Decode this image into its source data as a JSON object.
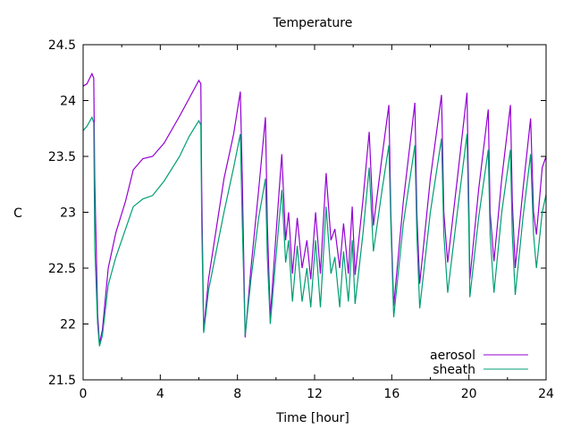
{
  "chart_data": {
    "type": "line",
    "title": "Temperature",
    "xlabel": "Time [hour]",
    "ylabel": "C",
    "xlim": [
      0,
      24
    ],
    "ylim": [
      21.5,
      24.5
    ],
    "xticks": [
      0,
      4,
      8,
      12,
      16,
      20,
      24
    ],
    "xtick_labels": [
      "0",
      "4",
      "8",
      "12",
      "16",
      "20",
      "24"
    ],
    "yticks": [
      21.5,
      22,
      22.5,
      23,
      23.5,
      24,
      24.5
    ],
    "ytick_labels": [
      "21.5",
      "22",
      "22.5",
      "23",
      "23.5",
      "24",
      "24.5"
    ],
    "grid": false,
    "legend_position": "bottom-right",
    "series": [
      {
        "name": "aerosol",
        "color": "#9400d3",
        "points": [
          [
            0,
            24.13
          ],
          [
            0.2,
            24.15
          ],
          [
            0.46,
            24.24
          ],
          [
            0.55,
            24.2
          ],
          [
            0.6,
            23.3
          ],
          [
            0.75,
            22.1
          ],
          [
            0.85,
            21.82
          ],
          [
            1.0,
            21.95
          ],
          [
            1.3,
            22.5
          ],
          [
            1.7,
            22.82
          ],
          [
            2.2,
            23.1
          ],
          [
            2.6,
            23.38
          ],
          [
            3.1,
            23.48
          ],
          [
            3.6,
            23.5
          ],
          [
            4.2,
            23.62
          ],
          [
            5.0,
            23.86
          ],
          [
            5.5,
            24.02
          ],
          [
            6.0,
            24.18
          ],
          [
            6.1,
            24.15
          ],
          [
            6.15,
            23.2
          ],
          [
            6.25,
            21.94
          ],
          [
            6.5,
            22.4
          ],
          [
            7.3,
            23.3
          ],
          [
            7.8,
            23.7
          ],
          [
            8.15,
            24.08
          ],
          [
            8.25,
            23.3
          ],
          [
            8.4,
            21.88
          ],
          [
            8.7,
            22.5
          ],
          [
            9.1,
            23.2
          ],
          [
            9.45,
            23.85
          ],
          [
            9.55,
            22.9
          ],
          [
            9.7,
            22.06
          ],
          [
            10.0,
            22.8
          ],
          [
            10.3,
            23.52
          ],
          [
            10.5,
            22.75
          ],
          [
            10.65,
            23.0
          ],
          [
            10.85,
            22.45
          ],
          [
            11.1,
            22.95
          ],
          [
            11.35,
            22.5
          ],
          [
            11.6,
            22.75
          ],
          [
            11.8,
            22.4
          ],
          [
            12.05,
            23.0
          ],
          [
            12.3,
            22.45
          ],
          [
            12.6,
            23.35
          ],
          [
            12.85,
            22.75
          ],
          [
            13.05,
            22.85
          ],
          [
            13.3,
            22.5
          ],
          [
            13.5,
            22.9
          ],
          [
            13.75,
            22.45
          ],
          [
            13.95,
            23.05
          ],
          [
            14.1,
            22.44
          ],
          [
            14.5,
            23.1
          ],
          [
            14.83,
            23.72
          ],
          [
            15.05,
            22.88
          ],
          [
            15.5,
            23.5
          ],
          [
            15.85,
            23.96
          ],
          [
            15.95,
            23.0
          ],
          [
            16.1,
            22.16
          ],
          [
            16.6,
            23.1
          ],
          [
            17.2,
            23.98
          ],
          [
            17.3,
            23.0
          ],
          [
            17.45,
            22.36
          ],
          [
            18.0,
            23.3
          ],
          [
            18.58,
            24.05
          ],
          [
            18.7,
            23.0
          ],
          [
            18.9,
            22.55
          ],
          [
            19.4,
            23.3
          ],
          [
            19.9,
            24.07
          ],
          [
            20.0,
            23.0
          ],
          [
            20.05,
            22.4
          ],
          [
            20.5,
            23.2
          ],
          [
            21.0,
            23.92
          ],
          [
            21.1,
            23.0
          ],
          [
            21.3,
            22.56
          ],
          [
            21.7,
            23.3
          ],
          [
            22.15,
            23.96
          ],
          [
            22.25,
            23.1
          ],
          [
            22.4,
            22.5
          ],
          [
            22.8,
            23.2
          ],
          [
            23.2,
            23.84
          ],
          [
            23.35,
            23.0
          ],
          [
            23.5,
            22.8
          ],
          [
            23.8,
            23.4
          ],
          [
            24,
            23.5
          ]
        ]
      },
      {
        "name": "sheath",
        "color": "#009e73",
        "points": [
          [
            0,
            23.73
          ],
          [
            0.2,
            23.77
          ],
          [
            0.46,
            23.85
          ],
          [
            0.55,
            23.8
          ],
          [
            0.6,
            22.7
          ],
          [
            0.75,
            22.0
          ],
          [
            0.85,
            21.8
          ],
          [
            1.0,
            21.9
          ],
          [
            1.3,
            22.35
          ],
          [
            1.7,
            22.6
          ],
          [
            2.2,
            22.85
          ],
          [
            2.6,
            23.05
          ],
          [
            3.1,
            23.12
          ],
          [
            3.6,
            23.15
          ],
          [
            4.2,
            23.28
          ],
          [
            5.0,
            23.5
          ],
          [
            5.5,
            23.68
          ],
          [
            6.0,
            23.82
          ],
          [
            6.1,
            23.78
          ],
          [
            6.15,
            22.9
          ],
          [
            6.25,
            21.92
          ],
          [
            6.5,
            22.3
          ],
          [
            7.3,
            23.0
          ],
          [
            7.8,
            23.4
          ],
          [
            8.15,
            23.7
          ],
          [
            8.25,
            22.9
          ],
          [
            8.4,
            21.9
          ],
          [
            8.7,
            22.4
          ],
          [
            9.1,
            22.95
          ],
          [
            9.45,
            23.3
          ],
          [
            9.55,
            22.6
          ],
          [
            9.7,
            22.0
          ],
          [
            10.0,
            22.6
          ],
          [
            10.3,
            23.2
          ],
          [
            10.5,
            22.55
          ],
          [
            10.65,
            22.75
          ],
          [
            10.85,
            22.2
          ],
          [
            11.1,
            22.7
          ],
          [
            11.35,
            22.2
          ],
          [
            11.6,
            22.5
          ],
          [
            11.8,
            22.15
          ],
          [
            12.05,
            22.75
          ],
          [
            12.3,
            22.15
          ],
          [
            12.6,
            23.05
          ],
          [
            12.85,
            22.45
          ],
          [
            13.05,
            22.6
          ],
          [
            13.3,
            22.15
          ],
          [
            13.5,
            22.65
          ],
          [
            13.75,
            22.2
          ],
          [
            13.95,
            22.75
          ],
          [
            14.1,
            22.18
          ],
          [
            14.5,
            22.8
          ],
          [
            14.83,
            23.4
          ],
          [
            15.05,
            22.65
          ],
          [
            15.5,
            23.2
          ],
          [
            15.85,
            23.6
          ],
          [
            15.95,
            22.9
          ],
          [
            16.1,
            22.06
          ],
          [
            16.6,
            22.9
          ],
          [
            17.2,
            23.6
          ],
          [
            17.3,
            22.8
          ],
          [
            17.45,
            22.14
          ],
          [
            18.0,
            23.0
          ],
          [
            18.58,
            23.66
          ],
          [
            18.7,
            22.8
          ],
          [
            18.9,
            22.28
          ],
          [
            19.4,
            23.0
          ],
          [
            19.9,
            23.7
          ],
          [
            20.0,
            22.8
          ],
          [
            20.05,
            22.24
          ],
          [
            20.5,
            22.95
          ],
          [
            21.0,
            23.56
          ],
          [
            21.1,
            22.8
          ],
          [
            21.3,
            22.28
          ],
          [
            21.7,
            23.0
          ],
          [
            22.15,
            23.56
          ],
          [
            22.25,
            22.8
          ],
          [
            22.4,
            22.26
          ],
          [
            22.8,
            22.95
          ],
          [
            23.2,
            23.52
          ],
          [
            23.35,
            22.8
          ],
          [
            23.5,
            22.5
          ],
          [
            23.8,
            23.0
          ],
          [
            24,
            23.16
          ]
        ]
      }
    ]
  }
}
